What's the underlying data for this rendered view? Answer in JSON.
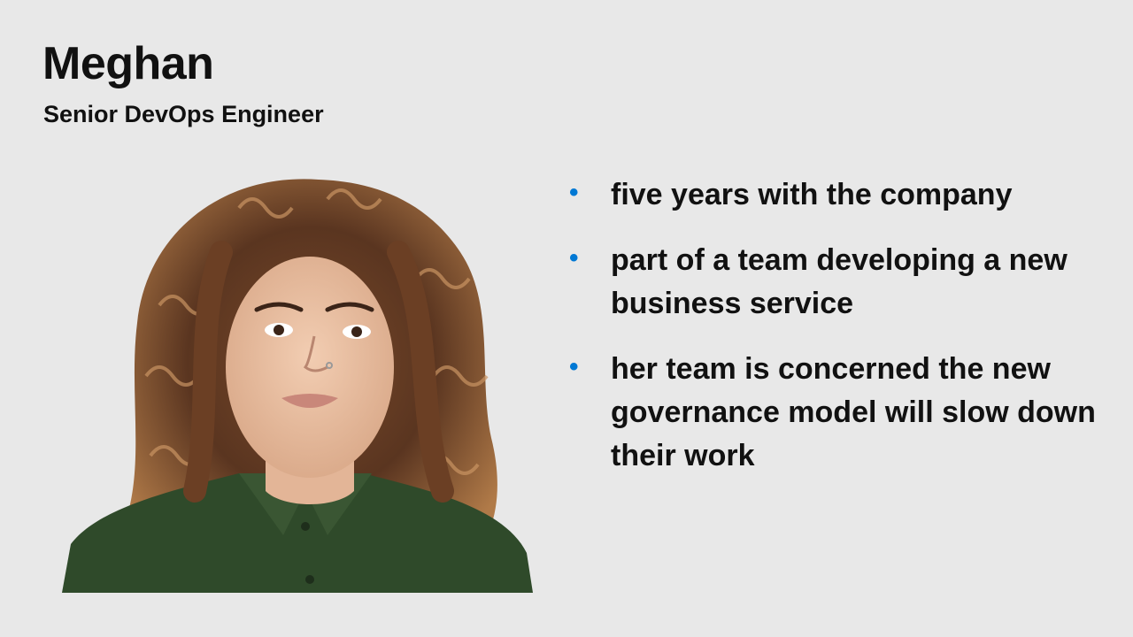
{
  "profile": {
    "name": "Meghan",
    "role": "Senior DevOps Engineer"
  },
  "bullets": [
    "five years with the company",
    "part of a team developing a new business service",
    "her team is concerned the new governance model will slow down their work"
  ],
  "colors": {
    "background": "#e8e8e8",
    "bullet_accent": "#0078d4",
    "text": "#111111"
  }
}
